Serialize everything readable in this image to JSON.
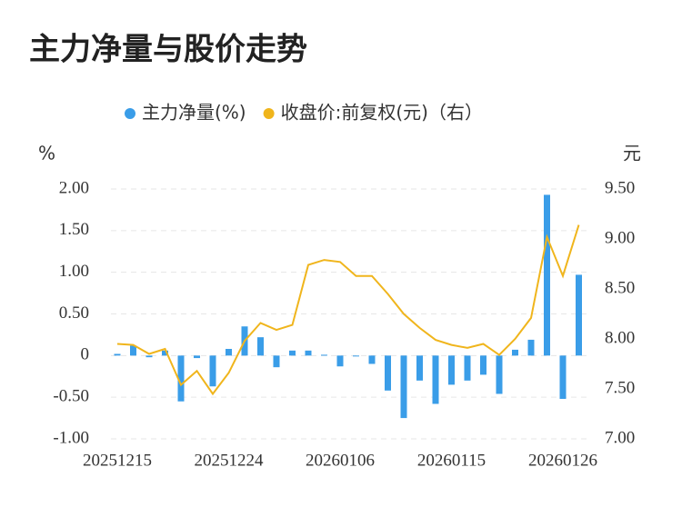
{
  "chart_data": {
    "type": "bar-line",
    "title": "主力净量与股价走势",
    "y_unit": "%",
    "y2_unit": "元",
    "categories": [
      "20251215",
      null,
      null,
      null,
      null,
      null,
      null,
      "20251224",
      null,
      null,
      null,
      null,
      null,
      null,
      "20260106",
      null,
      null,
      null,
      null,
      null,
      null,
      "20260115",
      null,
      null,
      null,
      null,
      null,
      null,
      "20260126",
      null
    ],
    "series": [
      {
        "name": "主力净量(%)",
        "type": "bar",
        "color": "#3a9de8",
        "values": [
          0.02,
          0.12,
          -0.02,
          0.06,
          -0.55,
          -0.03,
          -0.37,
          0.08,
          0.35,
          0.22,
          -0.14,
          0.06,
          0.06,
          0.01,
          -0.13,
          -0.01,
          -0.1,
          -0.42,
          -0.75,
          -0.3,
          -0.58,
          -0.35,
          -0.3,
          -0.23,
          -0.46,
          0.07,
          0.19,
          1.93,
          -0.52,
          0.97
        ]
      },
      {
        "name": "收盘价:前复权(元)（右）",
        "type": "line",
        "axis": "y2",
        "color": "#f0b51c",
        "values": [
          7.95,
          7.94,
          7.85,
          7.9,
          7.54,
          7.68,
          7.45,
          7.66,
          7.98,
          8.16,
          8.09,
          8.14,
          8.74,
          8.79,
          8.77,
          8.63,
          8.63,
          8.45,
          8.25,
          8.11,
          7.99,
          7.94,
          7.91,
          7.95,
          7.84,
          8.0,
          8.21,
          9.02,
          8.63,
          9.14
        ]
      }
    ],
    "ylim": [
      -1,
      2
    ],
    "yticks": [
      {
        "value": -1,
        "label": "-1.00"
      },
      {
        "value": -0.5,
        "label": "-0.50"
      },
      0,
      {
        "value": 0.5,
        "label": "0.50"
      },
      {
        "value": 1,
        "label": "1.00"
      },
      {
        "value": 1.5,
        "label": "1.50"
      },
      {
        "value": 2,
        "label": "2.00"
      }
    ],
    "y2lim": [
      7,
      9.5
    ],
    "y2ticks": [
      {
        "value": 7,
        "label": "7.00"
      },
      {
        "value": 7.5,
        "label": "7.50"
      },
      {
        "value": 8,
        "label": "8.00"
      },
      {
        "value": 8.5,
        "label": "8.50"
      },
      {
        "value": 9,
        "label": "9.00"
      },
      {
        "value": 9.5,
        "label": "9.50"
      }
    ],
    "grid": true,
    "legend": "top"
  }
}
